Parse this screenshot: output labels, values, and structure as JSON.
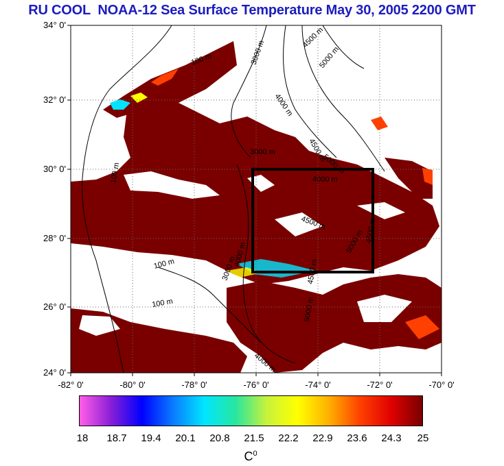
{
  "title": "RU COOL  NOAA-12 Sea Surface Temperature May 30, 2005 2200 GMT",
  "lat_labels": [
    "34° 0'",
    "32° 0'",
    "30° 0'",
    "28° 0'",
    "26° 0'",
    "24° 0'"
  ],
  "lon_labels": [
    "-82° 0'",
    "-80° 0'",
    "-78° 0'",
    "-76° 0'",
    "-74° 0'",
    "-72° 0'",
    "-70° 0'"
  ],
  "lat_range": [
    24,
    34
  ],
  "lon_range": [
    -82,
    -70
  ],
  "study_box": {
    "lon": [
      -76,
      -72
    ],
    "lat": [
      27,
      30
    ]
  },
  "depth_contour_labels": [
    "100 m",
    "100 m",
    "100 m",
    "100 m",
    "3000 m",
    "4000 m",
    "4500 m",
    "5000 m",
    "3000 m",
    "4000 m",
    "4500 m",
    "5000 m",
    "4500 m",
    "4000 m",
    "3000 m",
    "4500 m",
    "5000 m",
    "4500 m",
    "5000 m",
    "4000 m"
  ],
  "colorbar": {
    "range": [
      18,
      25
    ],
    "tick_labels": [
      "18",
      "18.7",
      "19.4",
      "20.1",
      "20.8",
      "21.5",
      "22.2",
      "22.9",
      "23.6",
      "24.3",
      "25"
    ],
    "unit_base": "C",
    "unit_sup": "0",
    "colors": [
      "#ff5ee6",
      "#8a1fd6",
      "#0000ff",
      "#0a7cff",
      "#00e5ff",
      "#27e6a0",
      "#c8f23c",
      "#ffff00",
      "#ffb000",
      "#ff4000",
      "#e00000",
      "#7a0000"
    ]
  },
  "colors": {
    "title": "#1c1cbf",
    "land_sst": "#7a0000",
    "grid": "#666666"
  }
}
